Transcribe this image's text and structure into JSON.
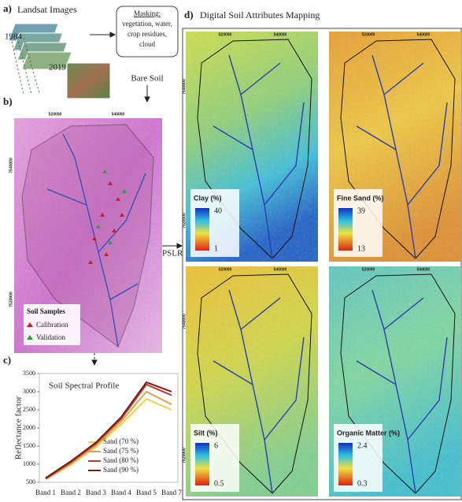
{
  "panel_a": {
    "label": "a)",
    "title": "Landsat Images",
    "years": [
      "1984",
      "2019"
    ],
    "masking": [
      "Masking:",
      "vegetation, water,",
      "crop residues,",
      "cloud"
    ],
    "output": "Bare Soil"
  },
  "panel_b": {
    "label": "b)",
    "x_ticks": [
      "520000",
      "540000"
    ],
    "y_ticks": [
      "7540000",
      "7520000"
    ],
    "legend_title": "Soil Samples",
    "legend": [
      "Calibration",
      "Validation"
    ]
  },
  "method": "PSLR",
  "panel_c": {
    "label": "c)"
  },
  "chart_data": {
    "type": "line",
    "title": "Soil Spectral Profile",
    "y_label": "Reflectance factor",
    "categories": [
      "Band 1",
      "Band 2",
      "Band 3",
      "Band 4",
      "Band 5",
      "Band 7"
    ],
    "series": [
      {
        "name": "Sand (70 %)",
        "color": "#f2d04a",
        "values": [
          580,
          980,
          1480,
          2100,
          2800,
          2500
        ]
      },
      {
        "name": "Sand (75 %)",
        "color": "#d9a250",
        "values": [
          590,
          1010,
          1520,
          2180,
          3000,
          2650
        ]
      },
      {
        "name": "Sand (80 %)",
        "color": "#c0392b",
        "values": [
          600,
          1050,
          1570,
          2250,
          3200,
          2900
        ]
      },
      {
        "name": "Sand (90 %)",
        "color": "#7a1b12",
        "values": [
          620,
          1080,
          1600,
          2300,
          3260,
          3000
        ]
      }
    ],
    "ylim": [
      500,
      3500
    ],
    "yticks": [
      500,
      1000,
      1500,
      2000,
      2500,
      3000,
      3500
    ]
  },
  "panel_d": {
    "label": "d)",
    "title": "Digital Soil Attributes Mapping",
    "x_ticks": [
      "520000",
      "540000"
    ],
    "y_ticks": [
      "7540000",
      "7520000"
    ],
    "maps": [
      {
        "name": "Clay (%)",
        "max": 40,
        "min": 1
      },
      {
        "name": "Fine Sand (%)",
        "max": 39,
        "min": 13
      },
      {
        "name": "Silt (%)",
        "max": 6,
        "min": 0.5
      },
      {
        "name": "Organic Matter (%)",
        "max": 2.4,
        "min": 0.3
      }
    ]
  }
}
